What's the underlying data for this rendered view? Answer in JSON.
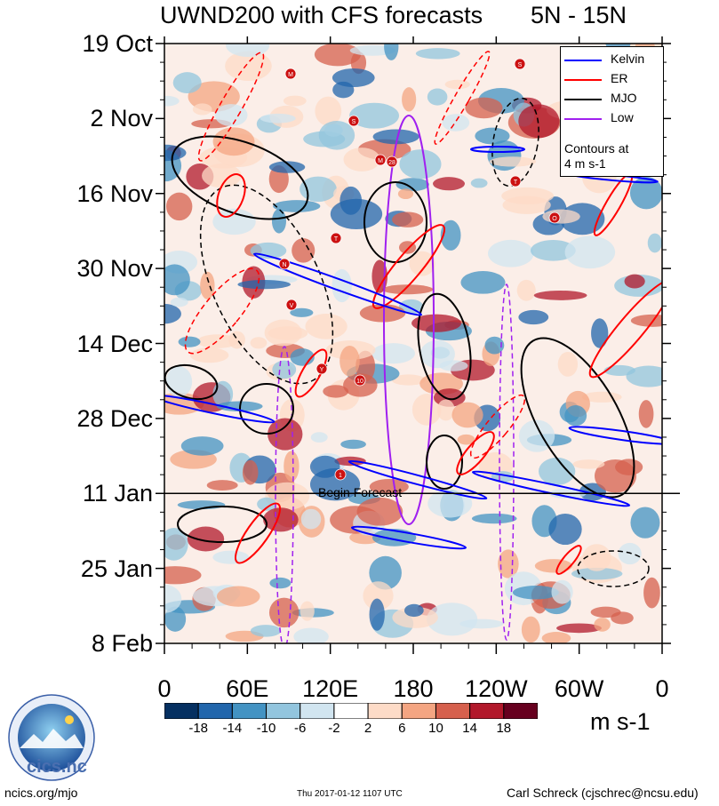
{
  "chart_data": {
    "type": "heatmap",
    "title": "UWND200 with CFS forecasts",
    "region": "5N - 15N",
    "x_axis": {
      "tick_labels": [
        "0",
        "60E",
        "120E",
        "180",
        "120W",
        "60W",
        "0"
      ],
      "range_deg_east": [
        0,
        360
      ]
    },
    "y_axis": {
      "tick_labels": [
        "19 Oct",
        "2 Nov",
        "16 Nov",
        "30 Nov",
        "14 Dec",
        "28 Dec",
        "11 Jan",
        "25 Jan",
        "8 Feb"
      ],
      "direction": "time increases downward"
    },
    "forecast_start": {
      "date": "11 Jan",
      "label": "Begin Forecast"
    },
    "colorbar": {
      "tick_labels": [
        "-18",
        "-14",
        "-10",
        "-6",
        "-2",
        "2",
        "6",
        "10",
        "14",
        "18"
      ],
      "units": "m s-1",
      "colors": [
        "#053061",
        "#2166ac",
        "#4393c3",
        "#92c5de",
        "#d1e5f0",
        "#ffffff",
        "#fddbc7",
        "#f4a582",
        "#d6604d",
        "#b2182b",
        "#67001f"
      ]
    },
    "legend": {
      "entries": [
        {
          "name": "Kelvin",
          "color": "#0000ff",
          "style": "solid"
        },
        {
          "name": "ER",
          "color": "#ff0000",
          "style": "solid"
        },
        {
          "name": "MJO",
          "color": "#000000",
          "style": "solid"
        },
        {
          "name": "Low",
          "color": "#a020f0",
          "style": "solid"
        }
      ],
      "note_line1": "Contours at",
      "note_line2": "4 m s-1",
      "placement": "top-right"
    },
    "storm_markers": [
      "S",
      "M",
      "S",
      "M",
      "28",
      "T",
      "O",
      "T",
      "N",
      "V",
      "Y",
      "10",
      "1"
    ]
  },
  "footer": {
    "left": "ncics.org/mjo",
    "middle": "Thu 2017-01-12 1107 UTC",
    "right": "Carl Schreck (cjschrec@ncsu.edu)",
    "logo_text": "cics.nc",
    "logo_ring_text": "Cooperative Institute for Climate and Satellites"
  }
}
